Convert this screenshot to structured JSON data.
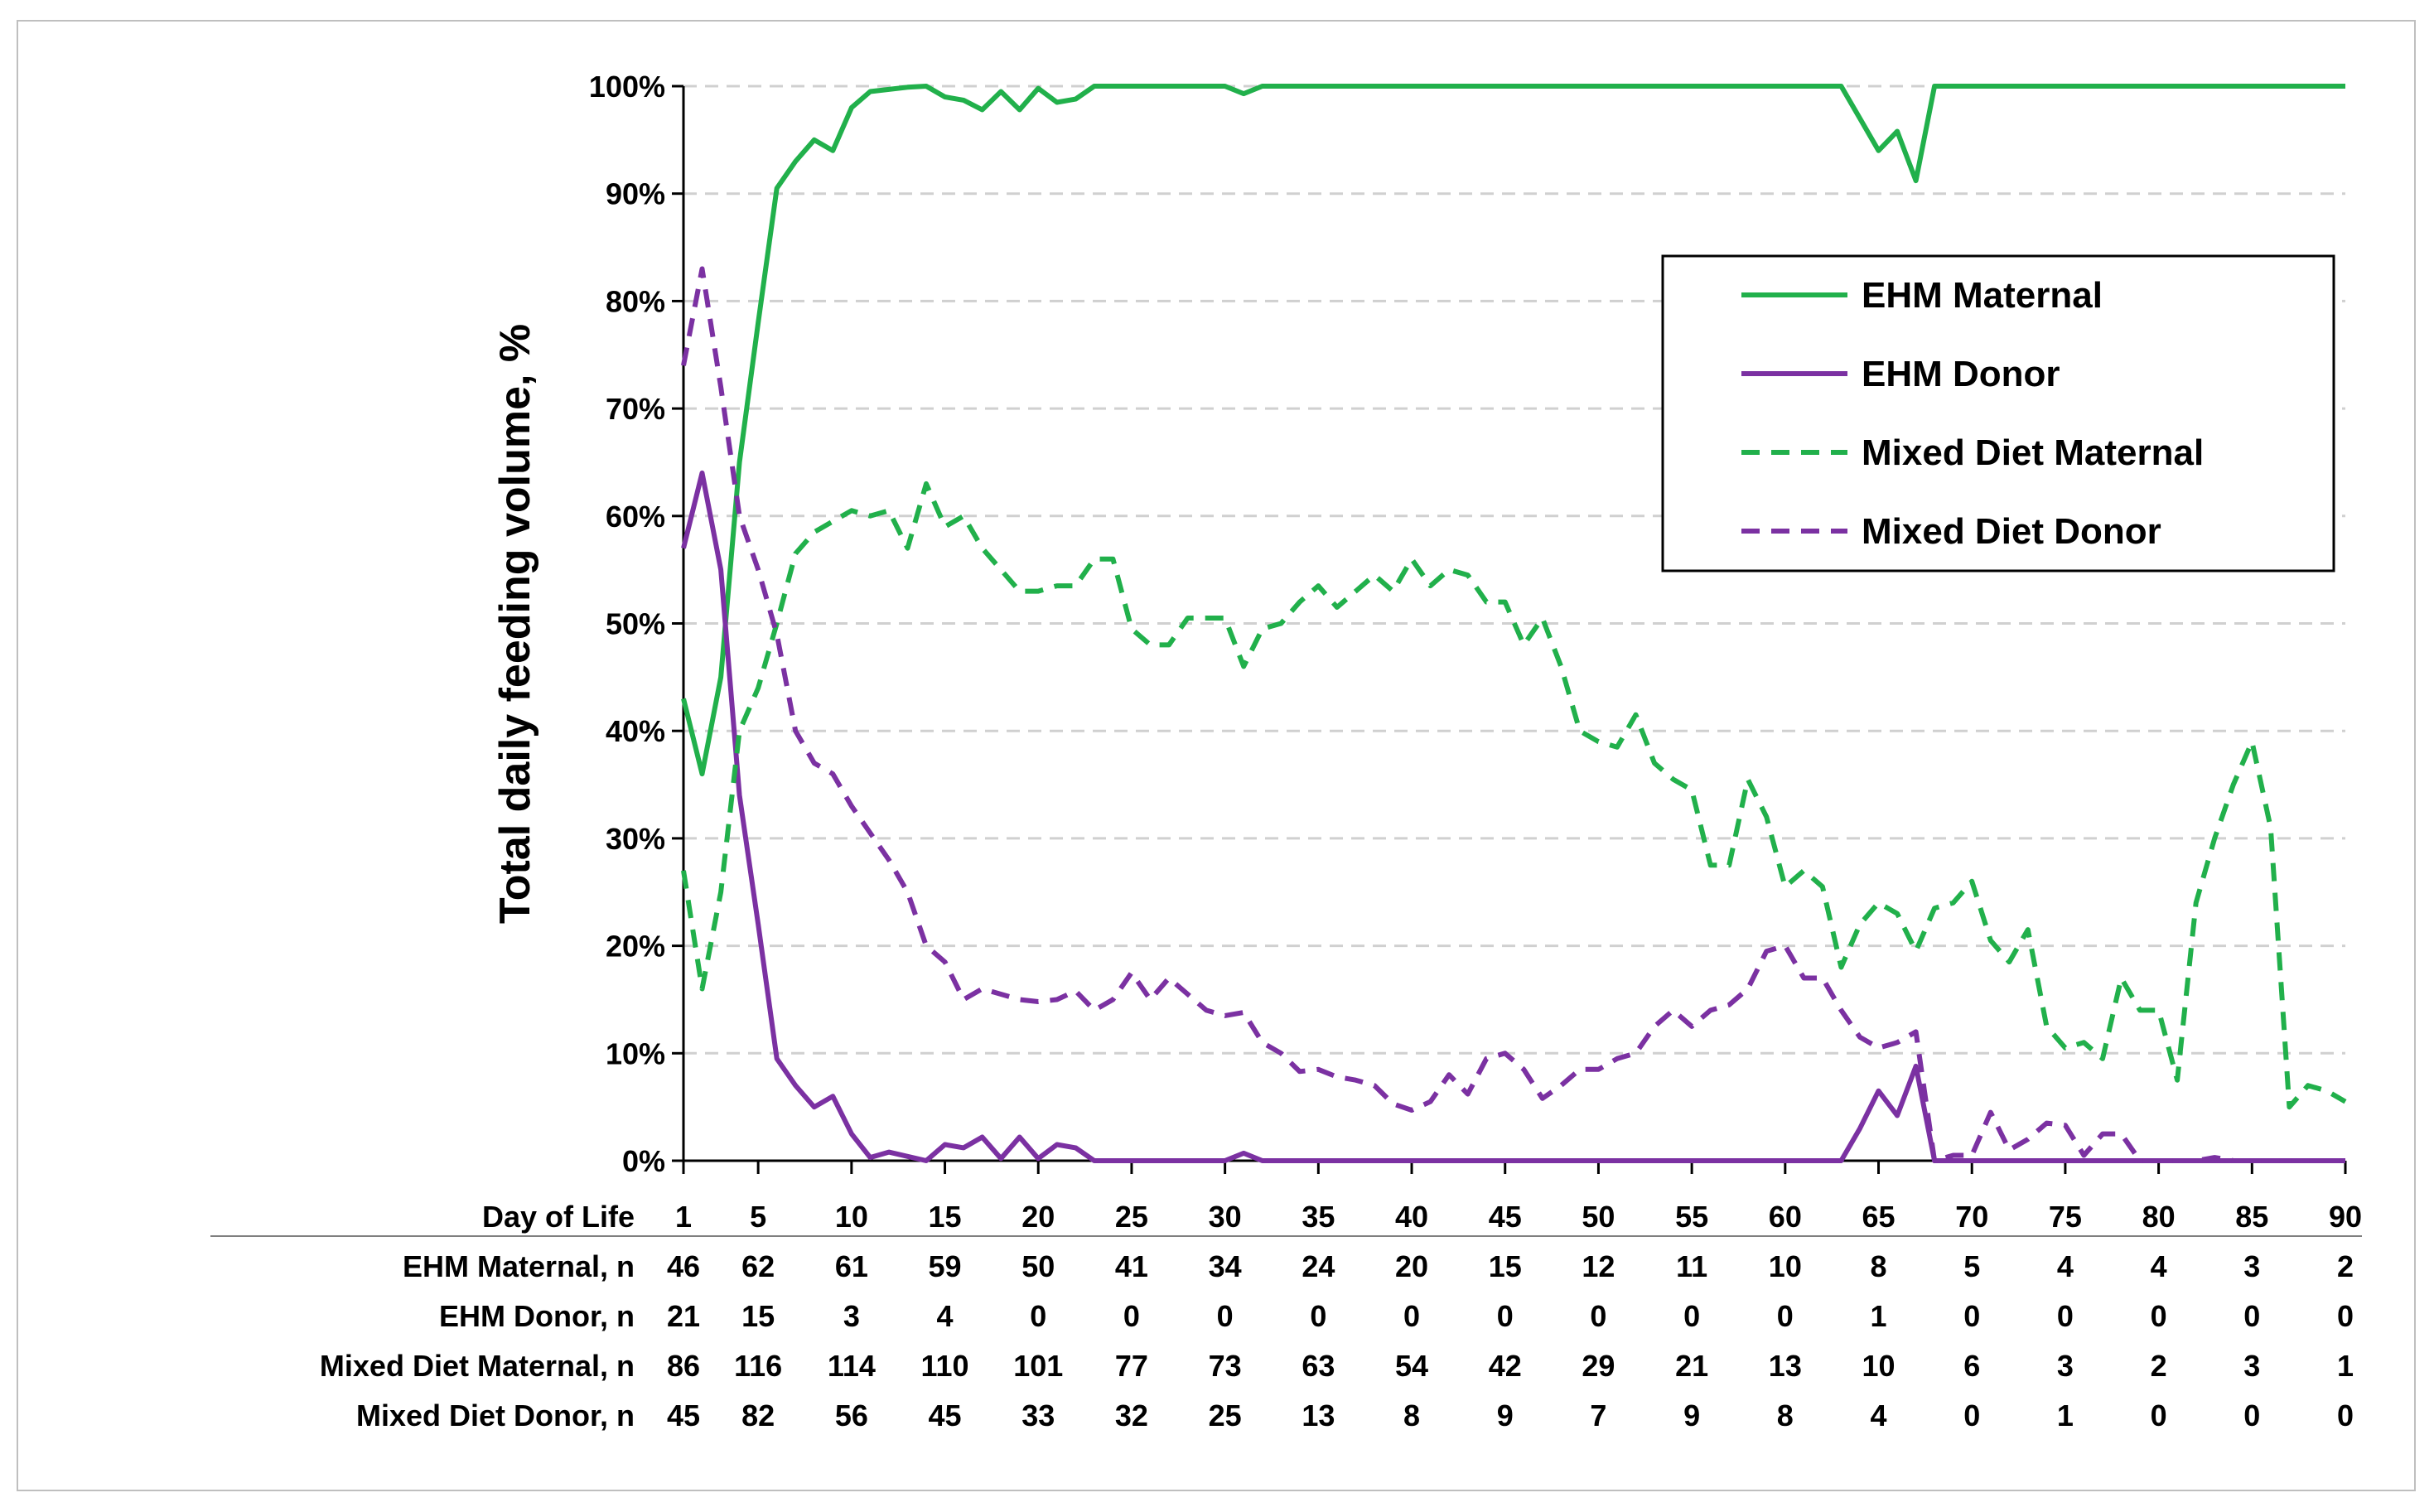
{
  "chart_data": {
    "type": "line",
    "title": "",
    "ylabel": "Total daily feeding volume, %",
    "xlabel": "Day of Life",
    "ylim": [
      0,
      100
    ],
    "xlim": [
      1,
      90
    ],
    "y_ticks": [
      "0%",
      "10%",
      "20%",
      "30%",
      "40%",
      "50%",
      "60%",
      "70%",
      "80%",
      "90%",
      "100%"
    ],
    "x_ticks": [
      "1",
      "5",
      "10",
      "15",
      "20",
      "25",
      "30",
      "35",
      "40",
      "45",
      "50",
      "55",
      "60",
      "65",
      "70",
      "75",
      "80",
      "85",
      "90"
    ],
    "grid": "horizontal dashed",
    "legend": "top-right",
    "series": [
      {
        "name": "EHM Maternal",
        "color": "#21b04b",
        "dash": "solid",
        "x": [
          1,
          2,
          3,
          4,
          5,
          6,
          7,
          8,
          9,
          10,
          11,
          12,
          13,
          14,
          15,
          16,
          17,
          18,
          19,
          20,
          21,
          22,
          23,
          24,
          30,
          31,
          32,
          63,
          64,
          65,
          66,
          67,
          68,
          90
        ],
        "values": [
          43,
          36,
          45,
          65,
          78,
          90.5,
          93,
          95,
          94,
          98,
          99.5,
          99.7,
          99.9,
          100,
          99,
          98.7,
          97.8,
          99.5,
          97.8,
          99.8,
          98.5,
          98.8,
          100,
          100,
          100,
          99.3,
          100,
          100,
          97,
          94,
          95.8,
          91.2,
          100,
          100
        ]
      },
      {
        "name": "EHM Donor",
        "color": "#7b31a2",
        "dash": "solid",
        "x": [
          1,
          2,
          3,
          4,
          5,
          6,
          7,
          8,
          9,
          10,
          11,
          12,
          13,
          14,
          15,
          16,
          17,
          18,
          19,
          20,
          21,
          22,
          23,
          24,
          30,
          31,
          32,
          63,
          64,
          65,
          66,
          67,
          68,
          90
        ],
        "values": [
          57,
          64,
          55,
          34,
          22,
          9.5,
          7,
          5,
          6,
          2.5,
          0.3,
          0.8,
          0.4,
          0,
          1.5,
          1.2,
          2.2,
          0.2,
          2.2,
          0.2,
          1.5,
          1.2,
          0,
          0,
          0,
          0.7,
          0,
          0,
          3,
          6.5,
          4.2,
          8.8,
          0,
          0
        ]
      },
      {
        "name": "Mixed Diet Maternal",
        "color": "#21b04b",
        "dash": "dashed",
        "x": [
          1,
          2,
          3,
          4,
          5,
          6,
          7,
          8,
          9,
          10,
          11,
          12,
          13,
          14,
          15,
          16,
          17,
          18,
          19,
          20,
          21,
          22,
          23,
          24,
          25,
          26,
          27,
          28,
          29,
          30,
          31,
          32,
          33,
          34,
          35,
          36,
          37,
          38,
          39,
          40,
          41,
          42,
          43,
          44,
          45,
          46,
          47,
          48,
          49,
          50,
          51,
          52,
          53,
          54,
          55,
          56,
          57,
          58,
          59,
          60,
          61,
          62,
          63,
          64,
          65,
          66,
          67,
          68,
          69,
          70,
          71,
          72,
          73,
          74,
          75,
          76,
          77,
          78,
          79,
          80,
          81,
          82,
          83,
          84,
          85,
          86,
          87,
          88,
          89,
          90
        ],
        "values": [
          27,
          16,
          25,
          40,
          44,
          50,
          56.5,
          58.5,
          59.5,
          60.5,
          60,
          60.5,
          57,
          63,
          59,
          60,
          57,
          55,
          53,
          53,
          53.5,
          53.5,
          56,
          56,
          49.5,
          48,
          48,
          50.5,
          50.5,
          50.5,
          46,
          49.5,
          50,
          52,
          53.5,
          51.5,
          53,
          54.5,
          53,
          56,
          53.5,
          55,
          54.5,
          52,
          52,
          48,
          50.5,
          46,
          40,
          39,
          38.5,
          41.5,
          37,
          35.5,
          34.5,
          27.5,
          27.5,
          35.5,
          32,
          25.5,
          27,
          25.5,
          18,
          22,
          24,
          23,
          19.5,
          23.5,
          24,
          26,
          20.5,
          18.5,
          21.5,
          12.5,
          10.5,
          11,
          9.5,
          17,
          14,
          14,
          7.5,
          24,
          30,
          35,
          39,
          31,
          5,
          7,
          6.5,
          5.5
        ]
      },
      {
        "name": "Mixed Diet Donor",
        "color": "#7b31a2",
        "dash": "dashed",
        "x": [
          1,
          2,
          3,
          4,
          5,
          6,
          7,
          8,
          9,
          10,
          11,
          12,
          13,
          14,
          15,
          16,
          17,
          18,
          19,
          20,
          21,
          22,
          23,
          24,
          25,
          26,
          27,
          28,
          29,
          30,
          31,
          32,
          33,
          34,
          35,
          36,
          37,
          38,
          39,
          40,
          41,
          42,
          43,
          44,
          45,
          46,
          47,
          48,
          49,
          50,
          51,
          52,
          53,
          54,
          55,
          56,
          57,
          58,
          59,
          60,
          61,
          62,
          63,
          64,
          65,
          66,
          67,
          68,
          69,
          70,
          71,
          72,
          73,
          74,
          75,
          76,
          77,
          78,
          79,
          80,
          81,
          82,
          83,
          84,
          85,
          86,
          87,
          88,
          89,
          90
        ],
        "values": [
          74,
          83,
          72,
          60,
          55,
          49,
          40,
          37,
          36,
          33,
          30.5,
          28,
          25,
          20,
          18.5,
          15,
          16,
          15.5,
          15,
          14.8,
          15,
          15.8,
          14,
          15,
          17.5,
          15,
          17,
          15.5,
          14,
          13.5,
          13.8,
          11,
          10,
          8.3,
          8.5,
          7.8,
          7.5,
          7,
          5.3,
          4.7,
          5.5,
          8,
          6.2,
          9.5,
          10,
          8.5,
          5.8,
          7,
          8.5,
          8.5,
          9.5,
          10,
          12.5,
          14,
          12.5,
          14,
          14.5,
          16,
          19.5,
          20,
          17,
          17,
          14,
          11.5,
          10.5,
          11,
          12,
          0,
          0.5,
          0.5,
          4.5,
          1,
          2,
          3.5,
          3.3,
          0.5,
          2.5,
          2.5,
          0,
          0,
          0,
          0,
          0.3,
          0,
          0,
          0,
          0,
          0,
          0,
          0
        ]
      }
    ],
    "table": {
      "x_days": [
        "1",
        "5",
        "10",
        "15",
        "20",
        "25",
        "30",
        "35",
        "40",
        "45",
        "50",
        "55",
        "60",
        "65",
        "70",
        "75",
        "80",
        "85",
        "90"
      ],
      "rows": [
        {
          "label": "EHM Maternal, n",
          "values": [
            "46",
            "62",
            "61",
            "59",
            "50",
            "41",
            "34",
            "24",
            "20",
            "15",
            "12",
            "11",
            "10",
            "8",
            "5",
            "4",
            "4",
            "3",
            "2"
          ]
        },
        {
          "label": "EHM Donor, n",
          "values": [
            "21",
            "15",
            "3",
            "4",
            "0",
            "0",
            "0",
            "0",
            "0",
            "0",
            "0",
            "0",
            "0",
            "1",
            "0",
            "0",
            "0",
            "0",
            "0"
          ]
        },
        {
          "label": "Mixed Diet Maternal, n",
          "values": [
            "86",
            "116",
            "114",
            "110",
            "101",
            "77",
            "73",
            "63",
            "54",
            "42",
            "29",
            "21",
            "13",
            "10",
            "6",
            "3",
            "2",
            "3",
            "1"
          ]
        },
        {
          "label": "Mixed Diet Donor, n",
          "values": [
            "45",
            "82",
            "56",
            "45",
            "33",
            "32",
            "25",
            "13",
            "8",
            "9",
            "7",
            "9",
            "8",
            "4",
            "0",
            "1",
            "0",
            "0",
            "0"
          ]
        }
      ]
    }
  }
}
